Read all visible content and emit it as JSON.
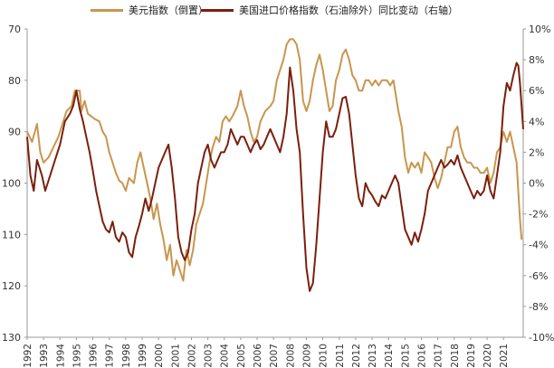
{
  "legend": {
    "series1": "美元指数（倒置）",
    "series2": "美国进口价格指数（石油除外）同比变动（右轴）"
  },
  "colors": {
    "series1": "#C8964E",
    "series2": "#7B1F0E",
    "axis": "#999999"
  },
  "chart_data": {
    "type": "line",
    "xlabel": "",
    "ylabel": "",
    "x_ticks": [
      "1992",
      "1993",
      "1994",
      "1995",
      "1996",
      "1997",
      "1998",
      "1999",
      "2000",
      "2001",
      "2002",
      "2003",
      "2004",
      "2005",
      "2006",
      "2007",
      "2008",
      "2009",
      "2010",
      "2011",
      "2012",
      "2013",
      "2014",
      "2015",
      "2016",
      "2017",
      "2018",
      "2019",
      "2020",
      "2021"
    ],
    "xlim": [
      1992.0,
      2022.2
    ],
    "y_left": {
      "ticks": [
        70,
        80,
        90,
        100,
        110,
        120,
        130
      ],
      "lim": [
        70,
        130
      ],
      "inverted": true
    },
    "y_right": {
      "ticks": [
        "10%",
        "8%",
        "6%",
        "4%",
        "2%",
        "0%",
        "-2%",
        "-4%",
        "-6%",
        "-8%",
        "-10%"
      ],
      "lim": [
        -10,
        10
      ]
    },
    "series": [
      {
        "name": "美元指数（倒置）",
        "axis": "left",
        "points": [
          [
            1992.0,
            90
          ],
          [
            1992.3,
            92
          ],
          [
            1992.6,
            88.5
          ],
          [
            1992.8,
            94
          ],
          [
            1993.0,
            96
          ],
          [
            1993.3,
            95
          ],
          [
            1993.6,
            93
          ],
          [
            1993.9,
            91
          ],
          [
            1994.1,
            89
          ],
          [
            1994.4,
            86
          ],
          [
            1994.7,
            85
          ],
          [
            1994.9,
            82
          ],
          [
            1995.2,
            82
          ],
          [
            1995.3,
            86
          ],
          [
            1995.5,
            84
          ],
          [
            1995.7,
            86.5
          ],
          [
            1995.9,
            87
          ],
          [
            1996.1,
            87.5
          ],
          [
            1996.4,
            88
          ],
          [
            1996.6,
            90
          ],
          [
            1996.8,
            91
          ],
          [
            1997.0,
            94
          ],
          [
            1997.2,
            96
          ],
          [
            1997.4,
            98
          ],
          [
            1997.6,
            99.5
          ],
          [
            1997.8,
            100
          ],
          [
            1998.0,
            101.5
          ],
          [
            1998.2,
            99
          ],
          [
            1998.5,
            100
          ],
          [
            1998.7,
            96
          ],
          [
            1998.9,
            94
          ],
          [
            1999.1,
            97
          ],
          [
            1999.3,
            100
          ],
          [
            1999.5,
            103
          ],
          [
            1999.7,
            107
          ],
          [
            1999.9,
            104
          ],
          [
            2000.1,
            108
          ],
          [
            2000.3,
            111
          ],
          [
            2000.5,
            115
          ],
          [
            2000.7,
            112
          ],
          [
            2000.9,
            118
          ],
          [
            2001.1,
            115
          ],
          [
            2001.3,
            117
          ],
          [
            2001.5,
            119
          ],
          [
            2001.7,
            113
          ],
          [
            2001.9,
            116
          ],
          [
            2002.1,
            113
          ],
          [
            2002.3,
            108
          ],
          [
            2002.5,
            106
          ],
          [
            2002.7,
            104
          ],
          [
            2002.9,
            100
          ],
          [
            2003.1,
            96
          ],
          [
            2003.3,
            93
          ],
          [
            2003.5,
            91
          ],
          [
            2003.7,
            92
          ],
          [
            2003.9,
            88
          ],
          [
            2004.1,
            87
          ],
          [
            2004.3,
            88
          ],
          [
            2004.5,
            87
          ],
          [
            2004.8,
            85
          ],
          [
            2005.0,
            82
          ],
          [
            2005.2,
            85
          ],
          [
            2005.4,
            87
          ],
          [
            2005.6,
            90
          ],
          [
            2005.8,
            92
          ],
          [
            2006.0,
            91
          ],
          [
            2006.2,
            88
          ],
          [
            2006.5,
            86
          ],
          [
            2006.8,
            85
          ],
          [
            2007.0,
            84
          ],
          [
            2007.2,
            80
          ],
          [
            2007.4,
            78
          ],
          [
            2007.6,
            76
          ],
          [
            2007.8,
            73
          ],
          [
            2008.0,
            72
          ],
          [
            2008.2,
            72
          ],
          [
            2008.4,
            73
          ],
          [
            2008.6,
            76
          ],
          [
            2008.8,
            84
          ],
          [
            2009.0,
            86
          ],
          [
            2009.2,
            84
          ],
          [
            2009.4,
            80
          ],
          [
            2009.6,
            77
          ],
          [
            2009.8,
            75
          ],
          [
            2010.0,
            78
          ],
          [
            2010.2,
            82
          ],
          [
            2010.4,
            86
          ],
          [
            2010.6,
            85
          ],
          [
            2010.8,
            80
          ],
          [
            2011.0,
            78
          ],
          [
            2011.2,
            75
          ],
          [
            2011.4,
            74
          ],
          [
            2011.6,
            76
          ],
          [
            2011.8,
            79
          ],
          [
            2012.0,
            80
          ],
          [
            2012.2,
            82
          ],
          [
            2012.4,
            82
          ],
          [
            2012.6,
            80
          ],
          [
            2012.8,
            80
          ],
          [
            2013.0,
            81
          ],
          [
            2013.2,
            80
          ],
          [
            2013.4,
            81
          ],
          [
            2013.6,
            80
          ],
          [
            2013.9,
            80
          ],
          [
            2014.1,
            81
          ],
          [
            2014.3,
            80
          ],
          [
            2014.6,
            86
          ],
          [
            2014.8,
            89
          ],
          [
            2015.0,
            95
          ],
          [
            2015.2,
            98
          ],
          [
            2015.4,
            96
          ],
          [
            2015.6,
            97
          ],
          [
            2015.8,
            96
          ],
          [
            2016.0,
            98
          ],
          [
            2016.2,
            94
          ],
          [
            2016.4,
            95
          ],
          [
            2016.6,
            96
          ],
          [
            2016.8,
            99
          ],
          [
            2017.0,
            101
          ],
          [
            2017.2,
            99
          ],
          [
            2017.4,
            96
          ],
          [
            2017.6,
            93
          ],
          [
            2017.8,
            93
          ],
          [
            2018.0,
            90
          ],
          [
            2018.2,
            89
          ],
          [
            2018.4,
            93
          ],
          [
            2018.6,
            95
          ],
          [
            2018.8,
            96
          ],
          [
            2019.0,
            96
          ],
          [
            2019.2,
            97
          ],
          [
            2019.4,
            97
          ],
          [
            2019.6,
            98
          ],
          [
            2019.8,
            98
          ],
          [
            2020.0,
            97
          ],
          [
            2020.2,
            100
          ],
          [
            2020.4,
            98
          ],
          [
            2020.6,
            94
          ],
          [
            2020.8,
            93
          ],
          [
            2021.0,
            90
          ],
          [
            2021.2,
            92
          ],
          [
            2021.4,
            90
          ],
          [
            2021.6,
            93
          ],
          [
            2021.8,
            96
          ],
          [
            2022.0,
            107
          ],
          [
            2022.1,
            111
          ]
        ]
      },
      {
        "name": "美国进口价格指数（石油除外）同比变动（右轴）",
        "axis": "right",
        "points": [
          [
            1992.0,
            3.0
          ],
          [
            1992.2,
            0.5
          ],
          [
            1992.4,
            -0.5
          ],
          [
            1992.6,
            1.5
          ],
          [
            1992.9,
            0.5
          ],
          [
            1993.1,
            -0.5
          ],
          [
            1993.4,
            0.5
          ],
          [
            1993.7,
            1.5
          ],
          [
            1994.0,
            2.5
          ],
          [
            1994.3,
            4.0
          ],
          [
            1994.6,
            4.5
          ],
          [
            1994.8,
            5.0
          ],
          [
            1995.0,
            6.0
          ],
          [
            1995.2,
            4.8
          ],
          [
            1995.4,
            4.0
          ],
          [
            1995.6,
            3.0
          ],
          [
            1995.8,
            2.0
          ],
          [
            1996.0,
            0.8
          ],
          [
            1996.2,
            -0.5
          ],
          [
            1996.4,
            -1.5
          ],
          [
            1996.6,
            -2.5
          ],
          [
            1996.8,
            -3.0
          ],
          [
            1997.0,
            -3.2
          ],
          [
            1997.2,
            -2.5
          ],
          [
            1997.4,
            -3.5
          ],
          [
            1997.6,
            -3.8
          ],
          [
            1997.8,
            -3.2
          ],
          [
            1998.0,
            -3.5
          ],
          [
            1998.2,
            -4.5
          ],
          [
            1998.4,
            -4.8
          ],
          [
            1998.6,
            -3.5
          ],
          [
            1998.8,
            -2.8
          ],
          [
            1999.0,
            -2.0
          ],
          [
            1999.2,
            -1.0
          ],
          [
            1999.4,
            -1.8
          ],
          [
            1999.6,
            -1.0
          ],
          [
            1999.8,
            0.0
          ],
          [
            2000.0,
            1.0
          ],
          [
            2000.2,
            1.5
          ],
          [
            2000.4,
            2.0
          ],
          [
            2000.6,
            2.5
          ],
          [
            2000.8,
            1.0
          ],
          [
            2001.0,
            -1.0
          ],
          [
            2001.2,
            -3.5
          ],
          [
            2001.4,
            -4.5
          ],
          [
            2001.6,
            -5.0
          ],
          [
            2001.8,
            -4.5
          ],
          [
            2002.0,
            -3.0
          ],
          [
            2002.2,
            -2.0
          ],
          [
            2002.4,
            0.0
          ],
          [
            2002.6,
            1.0
          ],
          [
            2002.8,
            2.0
          ],
          [
            2003.0,
            2.5
          ],
          [
            2003.2,
            1.5
          ],
          [
            2003.4,
            1.0
          ],
          [
            2003.6,
            1.5
          ],
          [
            2003.8,
            2.0
          ],
          [
            2004.0,
            2.0
          ],
          [
            2004.2,
            2.5
          ],
          [
            2004.4,
            3.5
          ],
          [
            2004.6,
            3.0
          ],
          [
            2004.8,
            2.5
          ],
          [
            2005.0,
            3.0
          ],
          [
            2005.2,
            3.0
          ],
          [
            2005.4,
            2.5
          ],
          [
            2005.6,
            2.0
          ],
          [
            2005.8,
            2.5
          ],
          [
            2006.0,
            2.8
          ],
          [
            2006.2,
            2.2
          ],
          [
            2006.4,
            2.5
          ],
          [
            2006.6,
            3.0
          ],
          [
            2006.8,
            3.5
          ],
          [
            2007.0,
            3.0
          ],
          [
            2007.2,
            2.5
          ],
          [
            2007.4,
            2.0
          ],
          [
            2007.6,
            3.0
          ],
          [
            2007.8,
            4.5
          ],
          [
            2008.0,
            7.5
          ],
          [
            2008.2,
            6.0
          ],
          [
            2008.4,
            3.5
          ],
          [
            2008.6,
            2.0
          ],
          [
            2008.8,
            -2.0
          ],
          [
            2009.0,
            -5.5
          ],
          [
            2009.2,
            -7.0
          ],
          [
            2009.4,
            -6.5
          ],
          [
            2009.6,
            -4.0
          ],
          [
            2009.8,
            -1.0
          ],
          [
            2010.0,
            2.0
          ],
          [
            2010.2,
            4.0
          ],
          [
            2010.4,
            3.0
          ],
          [
            2010.6,
            3.0
          ],
          [
            2010.8,
            3.5
          ],
          [
            2011.0,
            4.5
          ],
          [
            2011.2,
            5.5
          ],
          [
            2011.4,
            5.6
          ],
          [
            2011.6,
            4.5
          ],
          [
            2011.8,
            2.5
          ],
          [
            2012.0,
            0.5
          ],
          [
            2012.2,
            -1.0
          ],
          [
            2012.4,
            -1.5
          ],
          [
            2012.6,
            0.0
          ],
          [
            2012.8,
            -0.5
          ],
          [
            2013.0,
            -0.8
          ],
          [
            2013.2,
            -1.2
          ],
          [
            2013.4,
            -1.5
          ],
          [
            2013.6,
            -0.8
          ],
          [
            2013.8,
            -1.0
          ],
          [
            2014.0,
            -0.5
          ],
          [
            2014.2,
            0.0
          ],
          [
            2014.4,
            0.5
          ],
          [
            2014.6,
            0.0
          ],
          [
            2014.8,
            -1.5
          ],
          [
            2015.0,
            -3.0
          ],
          [
            2015.2,
            -3.5
          ],
          [
            2015.4,
            -4.0
          ],
          [
            2015.6,
            -3.2
          ],
          [
            2015.8,
            -3.8
          ],
          [
            2016.0,
            -3.0
          ],
          [
            2016.2,
            -2.0
          ],
          [
            2016.4,
            -0.5
          ],
          [
            2016.6,
            0.0
          ],
          [
            2016.8,
            0.5
          ],
          [
            2017.0,
            1.0
          ],
          [
            2017.2,
            1.5
          ],
          [
            2017.4,
            1.0
          ],
          [
            2017.6,
            1.2
          ],
          [
            2017.8,
            1.5
          ],
          [
            2018.0,
            1.2
          ],
          [
            2018.2,
            1.8
          ],
          [
            2018.4,
            1.0
          ],
          [
            2018.6,
            0.5
          ],
          [
            2018.8,
            0.0
          ],
          [
            2019.0,
            -0.5
          ],
          [
            2019.2,
            -1.0
          ],
          [
            2019.4,
            -0.5
          ],
          [
            2019.6,
            -0.8
          ],
          [
            2019.8,
            -0.5
          ],
          [
            2020.0,
            0.5
          ],
          [
            2020.2,
            -0.5
          ],
          [
            2020.4,
            -1.0
          ],
          [
            2020.6,
            0.5
          ],
          [
            2020.8,
            2.0
          ],
          [
            2021.0,
            5.0
          ],
          [
            2021.2,
            6.5
          ],
          [
            2021.4,
            6.0
          ],
          [
            2021.6,
            7.0
          ],
          [
            2021.8,
            7.8
          ],
          [
            2021.9,
            7.6
          ],
          [
            2022.0,
            6.5
          ],
          [
            2022.1,
            5.0
          ],
          [
            2022.2,
            3.5
          ]
        ]
      }
    ]
  }
}
